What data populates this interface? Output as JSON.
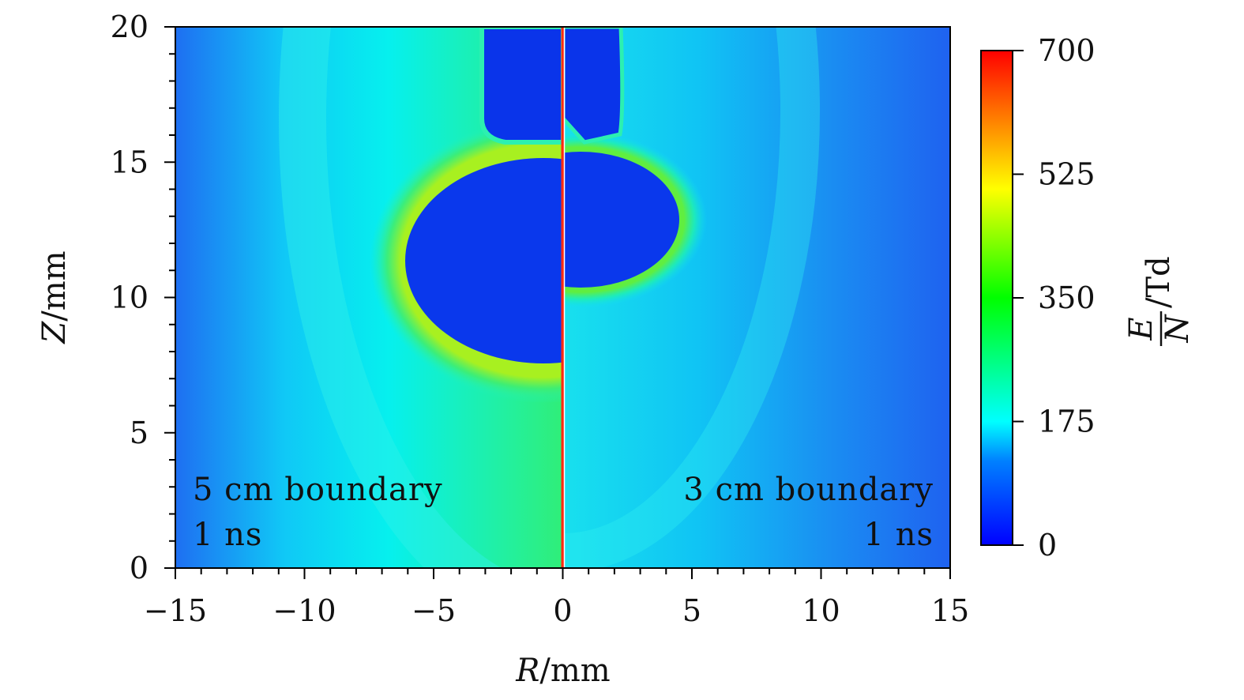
{
  "chart_data": {
    "type": "heatmap",
    "xlabel_var": "R",
    "xlabel_unit": "/mm",
    "ylabel_var": "Z",
    "ylabel_unit": "/mm",
    "xlim": [
      -15,
      15
    ],
    "ylim": [
      0,
      20
    ],
    "x_ticks": [
      -15,
      -10,
      -5,
      0,
      5,
      10,
      15
    ],
    "x_tick_labels": [
      "−15",
      "−10",
      "−5",
      "0",
      "5",
      "10",
      "15"
    ],
    "y_ticks": [
      0,
      5,
      10,
      15,
      20
    ],
    "y_tick_labels": [
      "0",
      "5",
      "10",
      "15",
      "20"
    ],
    "colorbar": {
      "label_numerator": "E",
      "label_denominator": "N",
      "label_unit": "/Td",
      "range": [
        0,
        700
      ],
      "ticks": [
        0,
        175,
        350,
        525,
        700
      ],
      "tick_labels": [
        "0",
        "175",
        "350",
        "525",
        "700"
      ],
      "colormap": [
        "#0000ff",
        "#0080ff",
        "#00ffff",
        "#00ff00",
        "#ffff00",
        "#ff8000",
        "#ff0000"
      ]
    },
    "panels": [
      {
        "side": "left",
        "annotation_line1": "5 cm boundary",
        "annotation_line2": "1 ns",
        "head_z_mm": 7.6,
        "head_radius_mm": 6.0
      },
      {
        "side": "right",
        "annotation_line1": "3 cm boundary",
        "annotation_line2": "1 ns",
        "head_z_mm": 10.4,
        "head_radius_mm": 4.6
      }
    ],
    "background_color": "#1f6cf0",
    "channel_color": "#0a2ee8",
    "field_high_color": "#8df000",
    "field_mid_color": "#00e8f0"
  }
}
